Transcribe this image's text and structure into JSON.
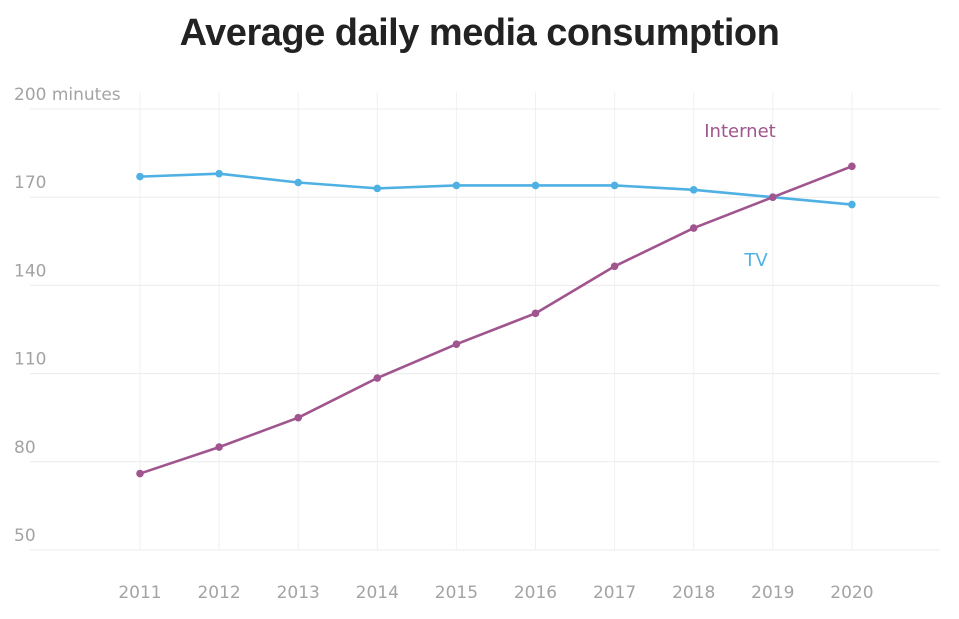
{
  "chart_data": {
    "type": "line",
    "title": "Average daily media consumption",
    "x": [
      "2011",
      "2012",
      "2013",
      "2014",
      "2015",
      "2016",
      "2017",
      "2018",
      "2019",
      "2020"
    ],
    "y_ticks": [
      {
        "value": 200,
        "label": "200 minutes"
      },
      {
        "value": 170,
        "label": "170"
      },
      {
        "value": 140,
        "label": "140"
      },
      {
        "value": 110,
        "label": "110"
      },
      {
        "value": 80,
        "label": "80"
      },
      {
        "value": 50,
        "label": "50"
      }
    ],
    "ylim": [
      50,
      200
    ],
    "grid": true,
    "series": [
      {
        "name": "TV",
        "color": "#4fb0e3",
        "values": [
          177,
          178,
          175,
          173,
          174,
          174,
          174,
          172.5,
          170,
          167.5
        ]
      },
      {
        "name": "Internet",
        "color": "#a0558e",
        "values": [
          76,
          85,
          95,
          108.5,
          120,
          130.5,
          146.5,
          159.5,
          170,
          180.5
        ]
      }
    ]
  }
}
